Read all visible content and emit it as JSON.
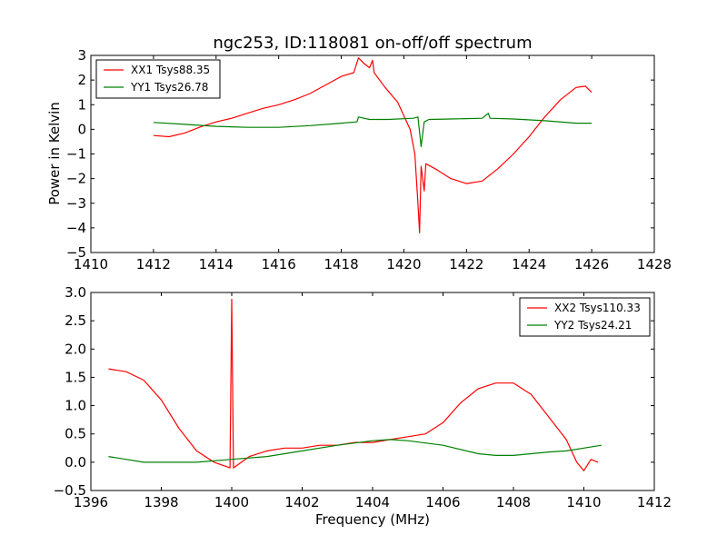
{
  "chart_data": [
    {
      "type": "line",
      "title": "ngc253, ID:118081 on-off/off spectrum",
      "xlabel": "",
      "ylabel": "Power in Kelvin",
      "xlim": [
        1410,
        1428
      ],
      "ylim": [
        -5,
        3
      ],
      "xticks": [
        1410,
        1412,
        1414,
        1416,
        1418,
        1420,
        1422,
        1424,
        1426,
        1428
      ],
      "yticks": [
        3,
        2,
        1,
        0,
        -1,
        -2,
        -3,
        -4,
        -5
      ],
      "ytick_labels": [
        "3",
        "2",
        "1",
        "0",
        "−1",
        "−2",
        "−3",
        "−4",
        "−5"
      ],
      "legend_position": "upper-left",
      "series": [
        {
          "name": "XX1 Tsys88.35",
          "color": "#ff0000",
          "points": [
            [
              1412.0,
              -0.25
            ],
            [
              1412.5,
              -0.3
            ],
            [
              1413.0,
              -0.15
            ],
            [
              1413.5,
              0.1
            ],
            [
              1414.0,
              0.3
            ],
            [
              1414.5,
              0.45
            ],
            [
              1415.0,
              0.65
            ],
            [
              1415.5,
              0.85
            ],
            [
              1416.0,
              1.0
            ],
            [
              1416.5,
              1.2
            ],
            [
              1417.0,
              1.45
            ],
            [
              1417.5,
              1.8
            ],
            [
              1418.0,
              2.15
            ],
            [
              1418.4,
              2.3
            ],
            [
              1418.55,
              2.9
            ],
            [
              1418.7,
              2.7
            ],
            [
              1418.9,
              2.5
            ],
            [
              1419.0,
              2.8
            ],
            [
              1419.05,
              2.3
            ],
            [
              1419.4,
              1.7
            ],
            [
              1419.8,
              1.1
            ],
            [
              1420.2,
              0.0
            ],
            [
              1420.35,
              -1.0
            ],
            [
              1420.45,
              -3.0
            ],
            [
              1420.5,
              -4.2
            ],
            [
              1420.55,
              -1.5
            ],
            [
              1420.65,
              -2.5
            ],
            [
              1420.7,
              -1.4
            ],
            [
              1421.0,
              -1.6
            ],
            [
              1421.5,
              -2.0
            ],
            [
              1422.0,
              -2.2
            ],
            [
              1422.5,
              -2.1
            ],
            [
              1423.0,
              -1.6
            ],
            [
              1423.5,
              -1.0
            ],
            [
              1424.0,
              -0.3
            ],
            [
              1424.5,
              0.5
            ],
            [
              1425.0,
              1.2
            ],
            [
              1425.5,
              1.7
            ],
            [
              1425.8,
              1.75
            ],
            [
              1426.0,
              1.5
            ]
          ]
        },
        {
          "name": "YY1 Tsys26.78",
          "color": "#008000",
          "points": [
            [
              1412.0,
              0.28
            ],
            [
              1413.0,
              0.2
            ],
            [
              1414.0,
              0.12
            ],
            [
              1415.0,
              0.08
            ],
            [
              1416.0,
              0.08
            ],
            [
              1417.0,
              0.15
            ],
            [
              1418.0,
              0.25
            ],
            [
              1418.5,
              0.3
            ],
            [
              1418.55,
              0.5
            ],
            [
              1418.9,
              0.4
            ],
            [
              1419.5,
              0.4
            ],
            [
              1420.3,
              0.45
            ],
            [
              1420.45,
              0.5
            ],
            [
              1420.55,
              -0.7
            ],
            [
              1420.65,
              0.3
            ],
            [
              1420.8,
              0.4
            ],
            [
              1421.5,
              0.42
            ],
            [
              1422.5,
              0.45
            ],
            [
              1422.7,
              0.65
            ],
            [
              1422.75,
              0.45
            ],
            [
              1423.5,
              0.42
            ],
            [
              1424.5,
              0.35
            ],
            [
              1425.5,
              0.25
            ],
            [
              1426.0,
              0.25
            ]
          ]
        }
      ]
    },
    {
      "type": "line",
      "title": "",
      "xlabel": "Frequency (MHz)",
      "ylabel": "",
      "xlim": [
        1396,
        1412
      ],
      "ylim": [
        -0.5,
        3.0
      ],
      "xticks": [
        1396,
        1398,
        1400,
        1402,
        1404,
        1406,
        1408,
        1410,
        1412
      ],
      "yticks": [
        3.0,
        2.5,
        2.0,
        1.5,
        1.0,
        0.5,
        0.0,
        -0.5
      ],
      "ytick_labels": [
        "3.0",
        "2.5",
        "2.0",
        "1.5",
        "1.0",
        "0.5",
        "0.0",
        "−0.5"
      ],
      "legend_position": "upper-right",
      "series": [
        {
          "name": "XX2 Tsys110.33",
          "color": "#ff0000",
          "points": [
            [
              1396.5,
              1.65
            ],
            [
              1397.0,
              1.6
            ],
            [
              1397.5,
              1.45
            ],
            [
              1398.0,
              1.1
            ],
            [
              1398.5,
              0.6
            ],
            [
              1399.0,
              0.2
            ],
            [
              1399.5,
              0.0
            ],
            [
              1399.95,
              -0.1
            ],
            [
              1400.0,
              2.88
            ],
            [
              1400.05,
              -0.1
            ],
            [
              1400.5,
              0.1
            ],
            [
              1401.0,
              0.2
            ],
            [
              1401.5,
              0.25
            ],
            [
              1402.0,
              0.25
            ],
            [
              1402.5,
              0.3
            ],
            [
              1403.0,
              0.3
            ],
            [
              1403.5,
              0.35
            ],
            [
              1404.0,
              0.35
            ],
            [
              1404.5,
              0.4
            ],
            [
              1405.0,
              0.45
            ],
            [
              1405.5,
              0.5
            ],
            [
              1406.0,
              0.7
            ],
            [
              1406.5,
              1.05
            ],
            [
              1407.0,
              1.3
            ],
            [
              1407.5,
              1.4
            ],
            [
              1408.0,
              1.4
            ],
            [
              1408.5,
              1.2
            ],
            [
              1409.0,
              0.8
            ],
            [
              1409.5,
              0.4
            ],
            [
              1409.8,
              0.0
            ],
            [
              1410.0,
              -0.15
            ],
            [
              1410.2,
              0.05
            ],
            [
              1410.4,
              0.0
            ]
          ]
        },
        {
          "name": "YY2 Tsys24.21",
          "color": "#008000",
          "points": [
            [
              1396.5,
              0.1
            ],
            [
              1397.0,
              0.05
            ],
            [
              1397.5,
              0.0
            ],
            [
              1398.0,
              0.0
            ],
            [
              1399.0,
              0.0
            ],
            [
              1400.0,
              0.05
            ],
            [
              1401.0,
              0.1
            ],
            [
              1402.0,
              0.2
            ],
            [
              1403.0,
              0.3
            ],
            [
              1404.0,
              0.38
            ],
            [
              1404.5,
              0.4
            ],
            [
              1405.0,
              0.38
            ],
            [
              1406.0,
              0.3
            ],
            [
              1407.0,
              0.15
            ],
            [
              1407.5,
              0.12
            ],
            [
              1408.0,
              0.12
            ],
            [
              1408.5,
              0.15
            ],
            [
              1409.0,
              0.18
            ],
            [
              1409.5,
              0.2
            ],
            [
              1410.0,
              0.25
            ],
            [
              1410.5,
              0.3
            ]
          ]
        }
      ]
    }
  ]
}
